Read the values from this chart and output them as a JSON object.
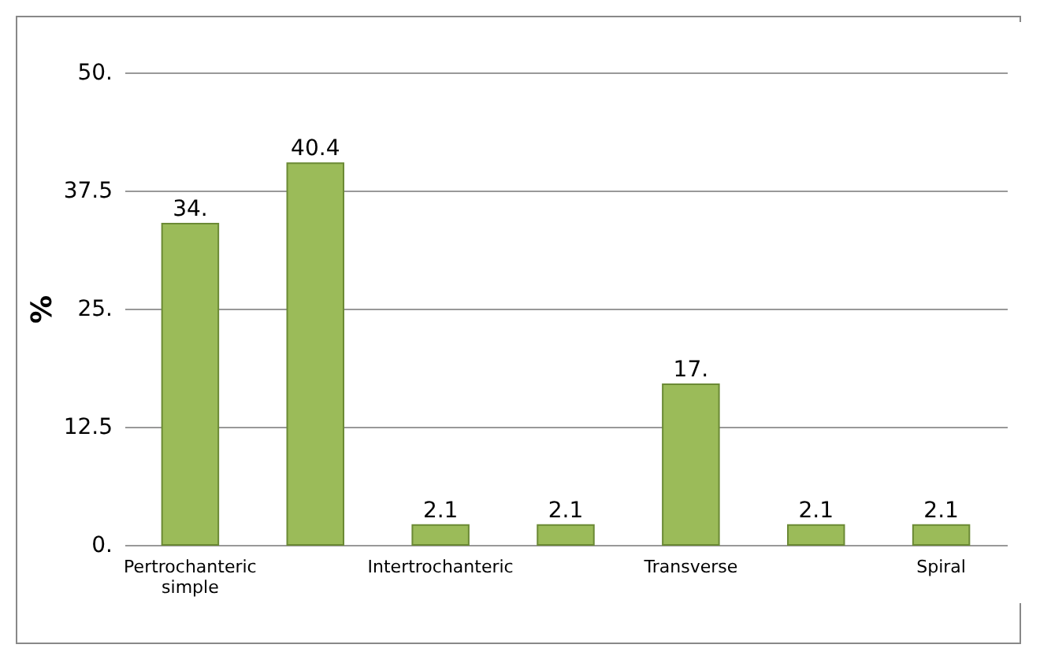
{
  "chart_data": {
    "type": "bar",
    "ylabel": "%",
    "categories": [
      "Pertrochanteric simple",
      null,
      "Intertrochanteric",
      null,
      "Transverse",
      null,
      "Spiral"
    ],
    "values": [
      34,
      40.4,
      2.1,
      2.1,
      17,
      2.1,
      2.1
    ],
    "value_labels": [
      "34.",
      "40.4",
      "2.1",
      "2.1",
      "17.",
      "2.1",
      "2.1"
    ],
    "color": "#9bbb59",
    "ylim": [
      0,
      50
    ],
    "yticks": [
      {
        "value": 0,
        "label": "0."
      },
      {
        "value": 12.5,
        "label": "12.5"
      },
      {
        "value": 25,
        "label": "25."
      },
      {
        "value": 37.5,
        "label": "37.5"
      },
      {
        "value": 50,
        "label": "50."
      }
    ],
    "grid": "y"
  }
}
